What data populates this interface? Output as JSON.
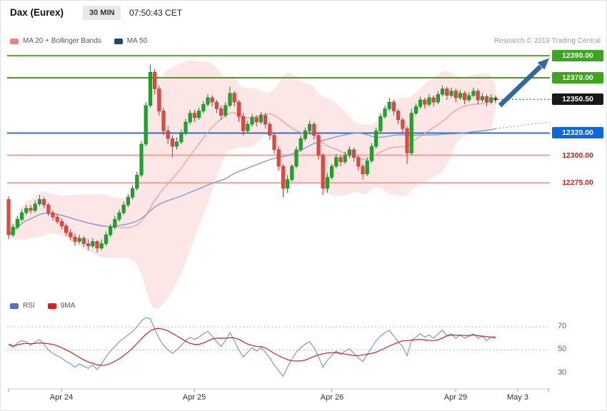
{
  "header": {
    "symbol": "Dax (Eurex)",
    "interval": "30 MIN",
    "time": "07:50:43 CET",
    "credit": "Research © 2019 Trading Central"
  },
  "legend": {
    "ma20": "MA 20 + Bollinger Bands",
    "ma50": "MA 50"
  },
  "rsi_legend": {
    "rsi": "RSI",
    "ma": "9MA"
  },
  "colors": {
    "up": "#1fa32b",
    "up_border": "#0e7d1c",
    "down": "#e2483d",
    "down_border": "#b93228",
    "band_fill": "rgba(245,173,173,0.30)",
    "ma20": "#ef9a9a",
    "ma50": "#7d9ed6",
    "rsi": "#7e97dd",
    "rsi_ma": "#d62222",
    "arrow": "#33679f",
    "grid": "#bbbbbb",
    "axis": "#c9c9c9",
    "leader": "#444444"
  },
  "chart_data": [
    {
      "type": "candlestick",
      "title": "Dax (Eurex) 30 MIN",
      "ylim": [
        12170,
        12400
      ],
      "grid": "off",
      "legend_position": "top-left",
      "overlays": [
        "MA 20 + Bollinger Bands",
        "MA 50"
      ],
      "last_price": 12350.5,
      "x_ticks": [
        {
          "index": 12,
          "label": "Apr 24"
        },
        {
          "index": 42,
          "label": "Apr 25"
        },
        {
          "index": 73,
          "label": "Apr 26"
        },
        {
          "index": 101,
          "label": "Apr 29"
        },
        {
          "index": 115,
          "label": "May 3"
        }
      ],
      "levels": [
        {
          "price": 12390.0,
          "label": "12390.00",
          "role": "resistance",
          "color": "#5aad2f"
        },
        {
          "price": 12370.0,
          "label": "12370.00",
          "role": "resistance",
          "color": "#4c9a1a"
        },
        {
          "price": 12350.5,
          "label": "12350.50",
          "role": "last-price",
          "color": "#333333"
        },
        {
          "price": 12320.0,
          "label": "12320.00",
          "role": "support",
          "color": "#2e6fd2"
        },
        {
          "price": 12300.0,
          "label": "12300.00",
          "role": "pivot",
          "color": "#f2a09c"
        },
        {
          "price": 12275.0,
          "label": "12275.00",
          "role": "pivot",
          "color": "#f2a09c"
        }
      ],
      "annotations": [
        {
          "type": "arrow",
          "from": {
            "index": 110,
            "price": 12346
          },
          "to": {
            "price": 12389
          },
          "meaning": "bullish continuation toward 12390"
        }
      ],
      "candles": [
        [
          12260,
          12263,
          12224,
          12228
        ],
        [
          12228,
          12238,
          12226,
          12235
        ],
        [
          12235,
          12245,
          12233,
          12242
        ],
        [
          12242,
          12251,
          12240,
          12248
        ],
        [
          12248,
          12255,
          12246,
          12252
        ],
        [
          12252,
          12255,
          12247,
          12250
        ],
        [
          12250,
          12259,
          12248,
          12256
        ],
        [
          12256,
          12264,
          12254,
          12260
        ],
        [
          12260,
          12262,
          12252,
          12255
        ],
        [
          12255,
          12257,
          12245,
          12248
        ],
        [
          12248,
          12250,
          12241,
          12244
        ],
        [
          12244,
          12247,
          12238,
          12240
        ],
        [
          12240,
          12243,
          12233,
          12236
        ],
        [
          12236,
          12238,
          12227,
          12230
        ],
        [
          12230,
          12233,
          12223,
          12226
        ],
        [
          12226,
          12229,
          12218,
          12222
        ],
        [
          12222,
          12228,
          12220,
          12225
        ],
        [
          12225,
          12227,
          12217,
          12220
        ],
        [
          12220,
          12224,
          12214,
          12218
        ],
        [
          12218,
          12225,
          12216,
          12222
        ],
        [
          12222,
          12223,
          12212,
          12216
        ],
        [
          12216,
          12224,
          12214,
          12220
        ],
        [
          12220,
          12231,
          12218,
          12228
        ],
        [
          12228,
          12238,
          12226,
          12235
        ],
        [
          12235,
          12245,
          12233,
          12242
        ],
        [
          12242,
          12251,
          12240,
          12248
        ],
        [
          12248,
          12258,
          12246,
          12255
        ],
        [
          12255,
          12265,
          12253,
          12262
        ],
        [
          12262,
          12273,
          12260,
          12270
        ],
        [
          12270,
          12285,
          12268,
          12282
        ],
        [
          12282,
          12313,
          12280,
          12310
        ],
        [
          12310,
          12348,
          12308,
          12345
        ],
        [
          12345,
          12382,
          12343,
          12375
        ],
        [
          12375,
          12378,
          12355,
          12360
        ],
        [
          12360,
          12363,
          12336,
          12340
        ],
        [
          12340,
          12343,
          12318,
          12322
        ],
        [
          12322,
          12326,
          12310,
          12315
        ],
        [
          12315,
          12318,
          12298,
          12308
        ],
        [
          12308,
          12316,
          12305,
          12312
        ],
        [
          12312,
          12323,
          12310,
          12320
        ],
        [
          12320,
          12333,
          12318,
          12330
        ],
        [
          12330,
          12341,
          12328,
          12338
        ],
        [
          12338,
          12341,
          12330,
          12334
        ],
        [
          12334,
          12343,
          12332,
          12340
        ],
        [
          12340,
          12349,
          12338,
          12346
        ],
        [
          12346,
          12355,
          12344,
          12352
        ],
        [
          12352,
          12354,
          12344,
          12348
        ],
        [
          12348,
          12350,
          12338,
          12342
        ],
        [
          12342,
          12345,
          12332,
          12336
        ],
        [
          12336,
          12348,
          12334,
          12345
        ],
        [
          12345,
          12362,
          12343,
          12356
        ],
        [
          12356,
          12358,
          12344,
          12348
        ],
        [
          12348,
          12350,
          12330,
          12335
        ],
        [
          12335,
          12338,
          12318,
          12322
        ],
        [
          12322,
          12331,
          12320,
          12328
        ],
        [
          12328,
          12337,
          12326,
          12334
        ],
        [
          12334,
          12336,
          12326,
          12330
        ],
        [
          12330,
          12339,
          12328,
          12336
        ],
        [
          12336,
          12338,
          12324,
          12328
        ],
        [
          12328,
          12330,
          12314,
          12318
        ],
        [
          12318,
          12320,
          12301,
          12305
        ],
        [
          12305,
          12308,
          12286,
          12290
        ],
        [
          12290,
          12292,
          12262,
          12270
        ],
        [
          12270,
          12282,
          12266,
          12278
        ],
        [
          12278,
          12292,
          12276,
          12290
        ],
        [
          12290,
          12308,
          12288,
          12305
        ],
        [
          12305,
          12318,
          12303,
          12315
        ],
        [
          12315,
          12325,
          12313,
          12322
        ],
        [
          12322,
          12331,
          12320,
          12328
        ],
        [
          12328,
          12330,
          12314,
          12318
        ],
        [
          12318,
          12320,
          12296,
          12300
        ],
        [
          12300,
          12302,
          12264,
          12270
        ],
        [
          12270,
          12284,
          12266,
          12280
        ],
        [
          12280,
          12292,
          12278,
          12290
        ],
        [
          12290,
          12301,
          12288,
          12298
        ],
        [
          12298,
          12300,
          12290,
          12294
        ],
        [
          12294,
          12303,
          12292,
          12300
        ],
        [
          12300,
          12308,
          12297,
          12305
        ],
        [
          12305,
          12307,
          12294,
          12298
        ],
        [
          12298,
          12300,
          12286,
          12290
        ],
        [
          12290,
          12292,
          12278,
          12283
        ],
        [
          12283,
          12298,
          12281,
          12295
        ],
        [
          12295,
          12311,
          12293,
          12308
        ],
        [
          12308,
          12325,
          12306,
          12322
        ],
        [
          12322,
          12338,
          12320,
          12335
        ],
        [
          12335,
          12345,
          12333,
          12342
        ],
        [
          12342,
          12352,
          12340,
          12348
        ],
        [
          12348,
          12350,
          12336,
          12340
        ],
        [
          12340,
          12342,
          12328,
          12332
        ],
        [
          12332,
          12334,
          12320,
          12324
        ],
        [
          12324,
          12326,
          12292,
          12302
        ],
        [
          12302,
          12342,
          12300,
          12338
        ],
        [
          12338,
          12347,
          12336,
          12344
        ],
        [
          12344,
          12353,
          12342,
          12350
        ],
        [
          12350,
          12352,
          12342,
          12346
        ],
        [
          12346,
          12355,
          12344,
          12352
        ],
        [
          12352,
          12354,
          12344,
          12348
        ],
        [
          12348,
          12358,
          12346,
          12355
        ],
        [
          12355,
          12363,
          12353,
          12360
        ],
        [
          12360,
          12362,
          12350,
          12354
        ],
        [
          12354,
          12361,
          12352,
          12358
        ],
        [
          12358,
          12360,
          12348,
          12352
        ],
        [
          12352,
          12359,
          12350,
          12356
        ],
        [
          12356,
          12358,
          12346,
          12350
        ],
        [
          12350,
          12357,
          12348,
          12354
        ],
        [
          12354,
          12361,
          12352,
          12358
        ],
        [
          12358,
          12360,
          12346,
          12350
        ],
        [
          12350,
          12356,
          12348,
          12353
        ],
        [
          12353,
          12355,
          12344,
          12348
        ],
        [
          12348,
          12355,
          12346,
          12352
        ],
        [
          12352,
          12354,
          12347,
          12350.5
        ]
      ]
    },
    {
      "type": "line",
      "name": "RSI panel",
      "ylim": [
        20,
        90
      ],
      "yticks": [
        "70",
        "50",
        "30"
      ],
      "grid_levels": [
        70,
        50
      ],
      "series": [
        {
          "name": "RSI",
          "values": [
            55,
            52,
            56,
            58,
            57,
            54,
            57,
            59,
            55,
            50,
            47,
            45,
            43,
            40,
            38,
            35,
            38,
            36,
            34,
            37,
            33,
            38,
            44,
            49,
            53,
            57,
            60,
            63,
            66,
            70,
            75,
            78,
            77,
            68,
            60,
            54,
            50,
            47,
            50,
            54,
            58,
            61,
            59,
            61,
            64,
            66,
            62,
            57,
            53,
            58,
            65,
            58,
            50,
            44,
            48,
            52,
            49,
            52,
            48,
            43,
            37,
            32,
            27,
            35,
            42,
            48,
            52,
            55,
            57,
            52,
            44,
            35,
            41,
            45,
            49,
            46,
            49,
            51,
            47,
            43,
            40,
            46,
            52,
            58,
            62,
            65,
            67,
            62,
            57,
            53,
            45,
            58,
            61,
            64,
            61,
            63,
            60,
            64,
            67,
            62,
            64,
            60,
            63,
            60,
            62,
            64,
            60,
            62,
            58,
            61,
            60
          ]
        },
        {
          "name": "9MA",
          "derived": "9-period SMA of RSI"
        }
      ]
    }
  ]
}
